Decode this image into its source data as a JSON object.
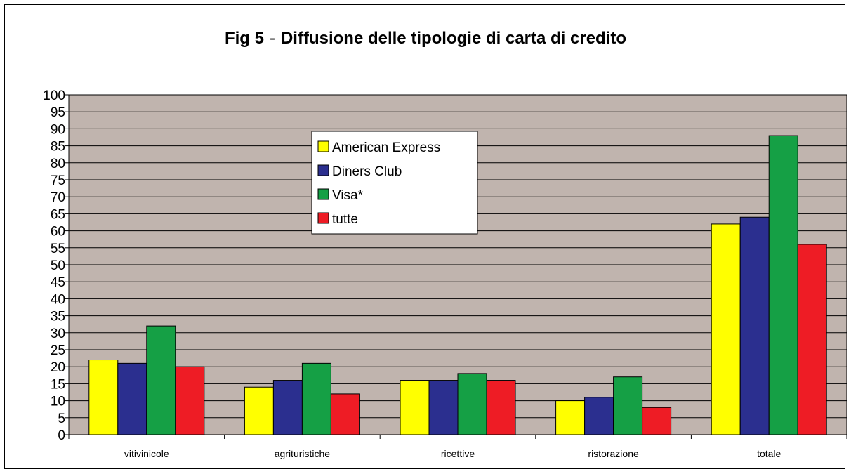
{
  "chart_data": {
    "type": "bar",
    "title_prefix": "Fig 5",
    "title_sep": "-",
    "title": "Diffusione delle tipologie di carta di credito",
    "xlabel": "",
    "ylabel": "",
    "ylim": [
      0,
      100
    ],
    "ytick_step": 5,
    "grid": true,
    "legend_position": "upper-center",
    "plot_background": "#c0b4ae",
    "categories": [
      "vitivinicole",
      "agrituristiche",
      "ricettive",
      "ristorazione",
      "totale"
    ],
    "series": [
      {
        "name": "American Express",
        "color": "#ffff00",
        "values": [
          22,
          14,
          16,
          10,
          62
        ]
      },
      {
        "name": "Diners Club",
        "color": "#2b2f8f",
        "values": [
          21,
          16,
          16,
          11,
          64
        ]
      },
      {
        "name": "Visa*",
        "color": "#15a045",
        "values": [
          32,
          21,
          18,
          17,
          88
        ]
      },
      {
        "name": "tutte",
        "color": "#ee1c25",
        "values": [
          20,
          12,
          16,
          8,
          56
        ]
      }
    ]
  }
}
